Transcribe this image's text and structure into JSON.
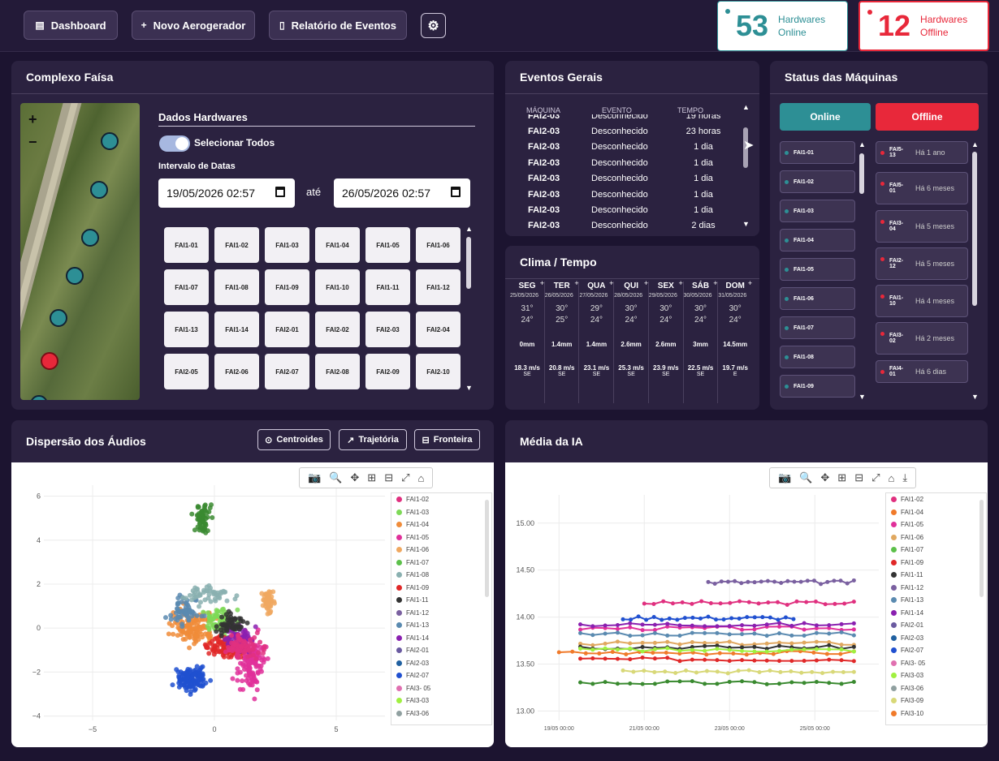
{
  "topbar": {
    "dashboard": "Dashboard",
    "novo": "Novo Aerogerador",
    "relatorio": "Relatório de Eventos",
    "online_count": "53",
    "online_label1": "Hardwares",
    "online_label2": "Online",
    "offline_count": "12",
    "offline_label1": "Hardwares",
    "offline_label2": "Offline"
  },
  "complexo": {
    "title": "Complexo Faísa",
    "dados_title": "Dados Hardwares",
    "selecionar": "Selecionar Todos",
    "intervalo": "Intervalo de Datas",
    "date_from": "19/05/2026 02:57",
    "ate": "até",
    "date_to": "26/05/2026 02:57",
    "zoom_in": "+",
    "zoom_out": "−",
    "hardwares": [
      "FAI1-01",
      "FAI1-02",
      "FAI1-03",
      "FAI1-04",
      "FAI1-05",
      "FAI1-06",
      "FAI1-07",
      "FAI1-08",
      "FAI1-09",
      "FAI1-10",
      "FAI1-11",
      "FAI1-12",
      "FAI1-13",
      "FAI1-14",
      "FAI2-01",
      "FAI2-02",
      "FAI2-03",
      "FAI2-04",
      "FAI2-05",
      "FAI2-06",
      "FAI2-07",
      "FAI2-08",
      "FAI2-09",
      "FAI2-10"
    ]
  },
  "eventos": {
    "title": "Eventos Gerais",
    "headers": {
      "maquina": "MÁQUINA",
      "evento": "EVENTO",
      "tempo": "TEMPO"
    },
    "rows": [
      {
        "maquina": "FAI2-03",
        "evento": "Desconhecido",
        "tempo": "19 horas"
      },
      {
        "maquina": "FAI2-03",
        "evento": "Desconhecido",
        "tempo": "23 horas"
      },
      {
        "maquina": "FAI2-03",
        "evento": "Desconhecido",
        "tempo": "1 dia"
      },
      {
        "maquina": "FAI2-03",
        "evento": "Desconhecido",
        "tempo": "1 dia"
      },
      {
        "maquina": "FAI2-03",
        "evento": "Desconhecido",
        "tempo": "1 dia"
      },
      {
        "maquina": "FAI2-03",
        "evento": "Desconhecido",
        "tempo": "1 dia"
      },
      {
        "maquina": "FAI2-03",
        "evento": "Desconhecido",
        "tempo": "1 dia"
      },
      {
        "maquina": "FAI2-03",
        "evento": "Desconhecido",
        "tempo": "2 dias"
      }
    ]
  },
  "clima": {
    "title": "Clima / Tempo",
    "days": [
      {
        "dia": "SEG",
        "data": "25/05/2026",
        "max": "31°",
        "min": "24°",
        "chuva": "0mm",
        "vento": "18.3 m/s",
        "dir": "SE"
      },
      {
        "dia": "TER",
        "data": "26/05/2026",
        "max": "30°",
        "min": "25°",
        "chuva": "1.4mm",
        "vento": "20.8 m/s",
        "dir": "SE"
      },
      {
        "dia": "QUA",
        "data": "27/05/2026",
        "max": "29°",
        "min": "24°",
        "chuva": "1.4mm",
        "vento": "23.1 m/s",
        "dir": "SE"
      },
      {
        "dia": "QUI",
        "data": "28/05/2026",
        "max": "30°",
        "min": "24°",
        "chuva": "2.6mm",
        "vento": "25.3 m/s",
        "dir": "SE"
      },
      {
        "dia": "SEX",
        "data": "29/05/2026",
        "max": "30°",
        "min": "24°",
        "chuva": "2.6mm",
        "vento": "23.9 m/s",
        "dir": "SE"
      },
      {
        "dia": "SÁB",
        "data": "30/05/2026",
        "max": "30°",
        "min": "24°",
        "chuva": "3mm",
        "vento": "22.5 m/s",
        "dir": "SE"
      },
      {
        "dia": "DOM",
        "data": "31/05/2026",
        "max": "30°",
        "min": "24°",
        "chuva": "14.5mm",
        "vento": "19.7 m/s",
        "dir": "E"
      }
    ]
  },
  "status": {
    "title": "Status das Máquinas",
    "online_btn": "Online",
    "offline_btn": "Offline",
    "online": [
      "FAI1-01",
      "FAI1-02",
      "FAI1-03",
      "FAI1-04",
      "FAI1-05",
      "FAI1-06",
      "FAI1-07",
      "FAI1-08",
      "FAI1-09"
    ],
    "offline": [
      {
        "id": "FAI5-13",
        "ago": "Há 1 ano"
      },
      {
        "id": "FAI5-01",
        "ago": "Há 6 meses"
      },
      {
        "id": "FAI3-04",
        "ago": "Há 5 meses"
      },
      {
        "id": "FAI2-12",
        "ago": "Há 5 meses"
      },
      {
        "id": "FAI1-10",
        "ago": "Há 4 meses"
      },
      {
        "id": "FAI3-02",
        "ago": "Há 2 meses"
      },
      {
        "id": "FAI4-01",
        "ago": "Há 6 dias"
      }
    ]
  },
  "dispersao": {
    "title": "Dispersão dos Áudios",
    "btn_centroides": "Centroides",
    "btn_trajetoria": "Trajetória",
    "btn_fronteira": "Fronteira",
    "legend": [
      {
        "name": "FAI1-02",
        "color": "#e0307f"
      },
      {
        "name": "FAI1-03",
        "color": "#7ed957"
      },
      {
        "name": "FAI1-04",
        "color": "#f08c3a"
      },
      {
        "name": "FAI1-05",
        "color": "#e0309a"
      },
      {
        "name": "FAI1-06",
        "color": "#f0a860"
      },
      {
        "name": "FAI1-07",
        "color": "#5cc04a"
      },
      {
        "name": "FAI1-08",
        "color": "#8ab0b0"
      },
      {
        "name": "FAI1-09",
        "color": "#e02828"
      },
      {
        "name": "FAI1-11",
        "color": "#333333"
      },
      {
        "name": "FAI1-12",
        "color": "#7a60a0"
      },
      {
        "name": "FAI1-13",
        "color": "#5a8ab0"
      },
      {
        "name": "FAI1-14",
        "color": "#8a20b0"
      },
      {
        "name": "FAI2-01",
        "color": "#6a5aa0"
      },
      {
        "name": "FAI2-03",
        "color": "#2060a0"
      },
      {
        "name": "FAI2-07",
        "color": "#2050d0"
      },
      {
        "name": "FAI3- 05",
        "color": "#e070b0"
      },
      {
        "name": "FAI3-03",
        "color": "#a0f040"
      },
      {
        "name": "FAI3-06",
        "color": "#90a0a0"
      }
    ]
  },
  "media": {
    "title": "Média da IA",
    "legend": [
      {
        "name": "FAI1-02",
        "color": "#e0307f"
      },
      {
        "name": "FAI1-04",
        "color": "#f07a2a"
      },
      {
        "name": "FAI1-05",
        "color": "#e0309a"
      },
      {
        "name": "FAI1-06",
        "color": "#e0a860"
      },
      {
        "name": "FAI1-07",
        "color": "#5cc04a"
      },
      {
        "name": "FAI1-09",
        "color": "#e02828"
      },
      {
        "name": "FAI1-11",
        "color": "#333333"
      },
      {
        "name": "FAI1-12",
        "color": "#7a60a0"
      },
      {
        "name": "FAI1-13",
        "color": "#5a8ab0"
      },
      {
        "name": "FAI1-14",
        "color": "#8a20b0"
      },
      {
        "name": "FAI2-01",
        "color": "#6a5aa0"
      },
      {
        "name": "FAI2-03",
        "color": "#2060a0"
      },
      {
        "name": "FAI2-07",
        "color": "#2050d0"
      },
      {
        "name": "FAI3- 05",
        "color": "#e070b0"
      },
      {
        "name": "FAI3-03",
        "color": "#a0f040"
      },
      {
        "name": "FAI3-06",
        "color": "#90a0a0"
      },
      {
        "name": "FAI3-09",
        "color": "#d8d878"
      },
      {
        "name": "FAI3-10",
        "color": "#f07a2a"
      }
    ]
  },
  "chart_data": [
    {
      "type": "scatter",
      "title": "",
      "xlim": [
        -7,
        7
      ],
      "ylim": [
        -4.2,
        6.5
      ],
      "xticks": [
        "−5",
        "0",
        "5"
      ],
      "yticks": [
        "−4",
        "−2",
        "0",
        "2",
        "4",
        "6"
      ],
      "clusters": [
        {
          "name": "FAI1-07",
          "color": "#3a8a30",
          "cx": -0.4,
          "cy": 5.0,
          "sx": 0.3,
          "sy": 0.5,
          "n": 60
        },
        {
          "name": "FAI2-07",
          "color": "#2050d0",
          "cx": -0.9,
          "cy": -2.3,
          "sx": 0.5,
          "sy": 0.4,
          "n": 120
        },
        {
          "name": "FAI1-05",
          "color": "#e0309a",
          "cx": 1.5,
          "cy": -1.5,
          "sx": 0.5,
          "sy": 1.0,
          "n": 140
        },
        {
          "name": "FAI1-04",
          "color": "#f08c3a",
          "cx": -0.8,
          "cy": 0.0,
          "sx": 0.7,
          "sy": 0.6,
          "n": 140
        },
        {
          "name": "FAI1-03",
          "color": "#7ed957",
          "cx": 0.3,
          "cy": 0.3,
          "sx": 0.6,
          "sy": 0.5,
          "n": 80
        },
        {
          "name": "FAI1-09",
          "color": "#e02828",
          "cx": 0.4,
          "cy": -0.8,
          "sx": 0.6,
          "sy": 0.4,
          "n": 90
        },
        {
          "name": "FAI1-14",
          "color": "#8a20b0",
          "cx": 1.0,
          "cy": -0.5,
          "sx": 0.4,
          "sy": 0.5,
          "n": 70
        },
        {
          "name": "FAI1-13",
          "color": "#5a8ab0",
          "cx": -1.2,
          "cy": 0.8,
          "sx": 0.5,
          "sy": 0.5,
          "n": 60
        },
        {
          "name": "FAI1-11",
          "color": "#333333",
          "cx": 0.6,
          "cy": 0.2,
          "sx": 0.5,
          "sy": 0.4,
          "n": 50
        },
        {
          "name": "FAI1-06",
          "color": "#f0a860",
          "cx": 2.2,
          "cy": 1.2,
          "sx": 0.2,
          "sy": 0.4,
          "n": 50
        },
        {
          "name": "FAI1-08",
          "color": "#8ab0b0",
          "cx": -0.2,
          "cy": 1.5,
          "sx": 0.8,
          "sy": 0.3,
          "n": 50
        },
        {
          "name": "FAI1-02",
          "color": "#e0307f",
          "cx": 1.2,
          "cy": -0.9,
          "sx": 0.6,
          "sy": 0.5,
          "n": 70
        }
      ]
    },
    {
      "type": "line",
      "title": "",
      "xlim": [
        "18/05 12:00",
        "26/05 12:00"
      ],
      "ylim": [
        12.9,
        15.3
      ],
      "xticks": [
        "19/05 00:00",
        "21/05 00:00",
        "23/05 00:00",
        "25/05 00:00"
      ],
      "yticks": [
        "13.00",
        "13.50",
        "14.00",
        "14.50",
        "15.00"
      ],
      "series": [
        {
          "name": "FAI1-02",
          "color": "#e0307f",
          "x0": "21/05 00:00",
          "x1": "25/05 22:00",
          "y": 14.15
        },
        {
          "name": "FAI1-04",
          "color": "#f07a2a",
          "x0": "19/05 00:00",
          "x1": "25/05 22:00",
          "y": 13.62
        },
        {
          "name": "FAI1-05",
          "color": "#e0309a",
          "x0": "19/05 12:00",
          "x1": "25/05 22:00",
          "y": 13.88
        },
        {
          "name": "FAI1-06",
          "color": "#e0a860",
          "x0": "19/05 12:00",
          "x1": "25/05 22:00",
          "y": 13.72
        },
        {
          "name": "FAI1-07",
          "color": "#3a8a30",
          "x0": "19/05 12:00",
          "x1": "25/05 22:00",
          "y": 13.3
        },
        {
          "name": "FAI1-09",
          "color": "#e02828",
          "x0": "19/05 12:00",
          "x1": "25/05 22:00",
          "y": 13.55
        },
        {
          "name": "FAI1-11",
          "color": "#333333",
          "x0": "19/05 12:00",
          "x1": "25/05 22:00",
          "y": 13.68
        },
        {
          "name": "FAI1-12",
          "color": "#7a60a0",
          "x0": "22/05 12:00",
          "x1": "25/05 22:00",
          "y": 14.37
        },
        {
          "name": "FAI1-13",
          "color": "#5a8ab0",
          "x0": "19/05 12:00",
          "x1": "25/05 22:00",
          "y": 13.82
        },
        {
          "name": "FAI1-14",
          "color": "#8a20b0",
          "x0": "19/05 12:00",
          "x1": "25/05 22:00",
          "y": 13.92
        },
        {
          "name": "FAI2-07",
          "color": "#2050d0",
          "x0": "20/05 12:00",
          "x1": "24/05 12:00",
          "y": 13.99
        },
        {
          "name": "FAI3-03",
          "color": "#a0f040",
          "x0": "19/05 12:00",
          "x1": "25/05 22:00",
          "y": 13.65
        },
        {
          "name": "FAI3-09",
          "color": "#d8d878",
          "x0": "20/05 12:00",
          "x1": "25/05 22:00",
          "y": 13.42
        }
      ]
    }
  ]
}
